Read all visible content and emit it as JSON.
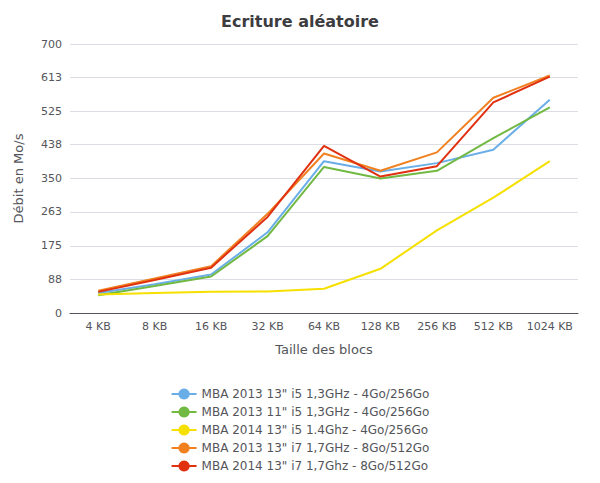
{
  "chart_data": {
    "type": "line",
    "title": "Ecriture aléatoire",
    "xlabel": "Taille des blocs",
    "ylabel": "Débit en Mo/s",
    "categories": [
      "4 KB",
      "8 KB",
      "16 KB",
      "32 KB",
      "64 KB",
      "128 KB",
      "256 KB",
      "512 KB",
      "1024 KB"
    ],
    "series": [
      {
        "name": "MBA 2013 13\" i5 1,3GHz - 4Go/256Go",
        "color": "#6aaee8",
        "values": [
          52,
          75,
          100,
          210,
          395,
          368,
          390,
          425,
          555
        ]
      },
      {
        "name": "MBA 2013 11\" i5 1,3GHz - 4Go/256Go",
        "color": "#72b944",
        "values": [
          46,
          70,
          95,
          200,
          380,
          350,
          370,
          455,
          535
        ]
      },
      {
        "name": "MBA 2014 13\" i5 1.4Ghz - 4Go/256Go",
        "color": "#f5e000",
        "values": [
          48,
          52,
          55,
          56,
          63,
          115,
          215,
          300,
          395
        ]
      },
      {
        "name": "MBA 2013 13\" i7 1,7GHz - 8Go/512Go",
        "color": "#f08020",
        "values": [
          58,
          90,
          122,
          258,
          415,
          370,
          418,
          560,
          618
        ]
      },
      {
        "name": "MBA 2014 13\" i7 1,7Ghz - 8Go/512Go",
        "color": "#e03010",
        "values": [
          55,
          86,
          118,
          250,
          435,
          355,
          382,
          548,
          615
        ]
      }
    ],
    "ylim": [
      0,
      700
    ],
    "yticks": [
      0,
      88,
      175,
      263,
      350,
      438,
      525,
      613,
      700
    ],
    "grid": true,
    "legend": "bottom"
  }
}
